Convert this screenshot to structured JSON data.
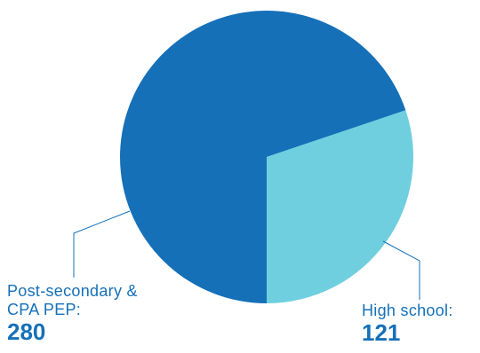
{
  "chart_data": {
    "type": "pie",
    "title": "",
    "slices": [
      {
        "label_lines": [
          "Post-secondary &",
          "CPA PEP:"
        ],
        "value": 280,
        "value_text": "280",
        "color": "#1570B8"
      },
      {
        "label_lines": [
          "High school:"
        ],
        "value": 121,
        "value_text": "121",
        "color": "#6FCFDF"
      }
    ],
    "label_text_color": "#1570B8",
    "leader_line_color": "#1570B8"
  }
}
